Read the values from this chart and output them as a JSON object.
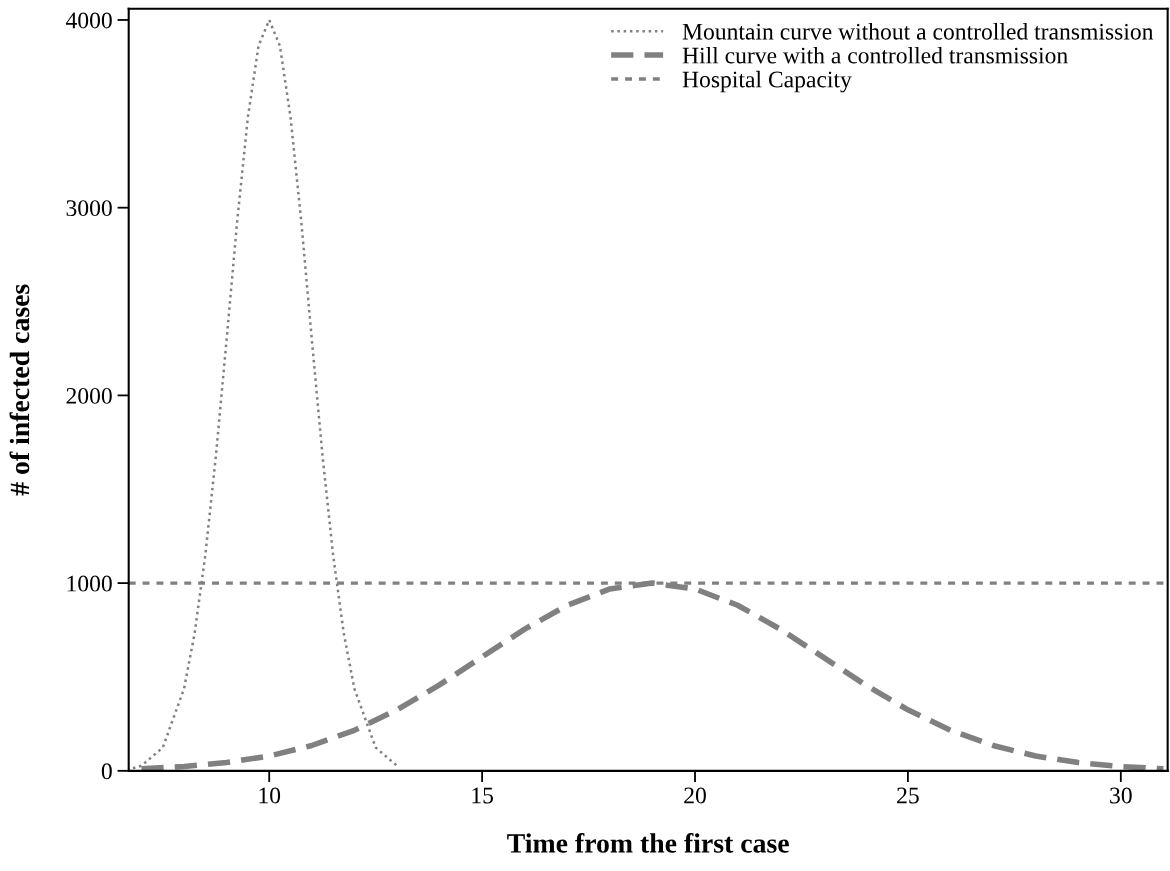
{
  "chart_data": {
    "type": "line",
    "xlabel": "Time from the first case",
    "ylabel": "# of infected cases",
    "xlim": [
      6.7,
      31.1
    ],
    "xticks": [
      10,
      15,
      20,
      25,
      30
    ],
    "ylim": [
      0,
      4060
    ],
    "yticks": [
      0,
      1000,
      2000,
      3000,
      4000
    ],
    "grid": false,
    "legend": "top right",
    "marker": "none",
    "series": [
      {
        "name": "Mountain curve without a controlled transmission",
        "color": "#808080",
        "line_style": "dotted",
        "x": [
          6.8,
          7,
          7.5,
          8,
          8.25,
          8.5,
          8.75,
          9,
          9.25,
          9.5,
          9.75,
          10,
          10.25,
          10.5,
          10.75,
          11,
          11.25,
          11.5,
          11.75,
          12,
          12.5,
          13
        ],
        "values": [
          14,
          27,
          124,
          438,
          734,
          1150,
          1683,
          2299,
          2933,
          3484,
          3863,
          4000,
          3863,
          3484,
          2933,
          2299,
          1683,
          1150,
          734,
          438,
          124,
          27
        ]
      },
      {
        "name": "Hill curve with a controlled transmission",
        "color": "#808080",
        "line_style": "dashed",
        "x": [
          7,
          8,
          9,
          10,
          11,
          12,
          13,
          14,
          15,
          16,
          17,
          18,
          19,
          20,
          21,
          22,
          23,
          24,
          25,
          26,
          27,
          28,
          29,
          30,
          31
        ],
        "values": [
          11,
          23,
          44,
          79,
          135,
          216,
          325,
          458,
          607,
          755,
          882,
          969,
          1000,
          969,
          882,
          755,
          607,
          458,
          325,
          216,
          135,
          79,
          44,
          23,
          11
        ]
      }
    ],
    "ref_lines": [
      {
        "axis": "y",
        "value": 1000,
        "label": "Hospital Capacity",
        "color": "#808080",
        "line_style": "dashed"
      }
    ]
  }
}
